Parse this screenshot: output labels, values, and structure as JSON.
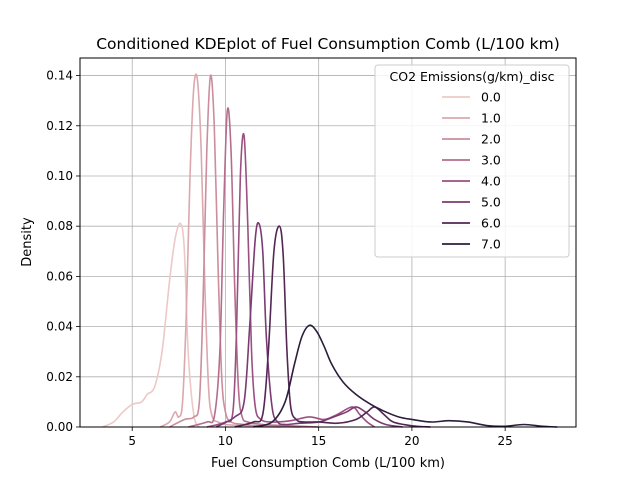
{
  "chart_data": {
    "type": "line",
    "title": "Conditioned KDEplot of Fuel Consumption Comb (L/100 km)",
    "xlabel": "Fuel Consumption Comb (L/100 km)",
    "ylabel": "Density",
    "xlim": [
      2.2,
      28.8
    ],
    "ylim": [
      0,
      0.147
    ],
    "xticks": [
      5,
      10,
      15,
      20,
      25
    ],
    "xtick_labels": [
      "5",
      "10",
      "15",
      "20",
      "25"
    ],
    "yticks": [
      0,
      0.02,
      0.04,
      0.06,
      0.08,
      0.1,
      0.12,
      0.14
    ],
    "ytick_labels": [
      "0.00",
      "0.02",
      "0.04",
      "0.06",
      "0.08",
      "0.10",
      "0.12",
      "0.14"
    ],
    "grid": true,
    "legend": {
      "title": "CO2 Emissions(g/km)_disc",
      "placement": "top-right",
      "entries": [
        "0.0",
        "1.0",
        "2.0",
        "3.0",
        "4.0",
        "5.0",
        "6.0",
        "7.0"
      ]
    },
    "series": [
      {
        "name": "0.0",
        "color": "#ecc9c6",
        "x": [
          3.4,
          4.0,
          4.5,
          5.0,
          5.5,
          5.8,
          6.2,
          6.6,
          7.0,
          7.3,
          7.6,
          7.8,
          8.0,
          8.3,
          8.6
        ],
        "y": [
          0.0,
          0.002,
          0.006,
          0.009,
          0.01,
          0.013,
          0.016,
          0.03,
          0.058,
          0.075,
          0.081,
          0.07,
          0.03,
          0.005,
          0.0
        ]
      },
      {
        "name": "1.0",
        "color": "#dba8ad",
        "x": [
          6.5,
          7.0,
          7.3,
          7.5,
          7.7,
          7.9,
          8.1,
          8.3,
          8.5,
          8.7,
          8.9,
          9.1,
          9.3,
          9.6,
          10.0,
          11.0,
          12.0,
          13.0
        ],
        "y": [
          0.0,
          0.002,
          0.006,
          0.004,
          0.01,
          0.045,
          0.1,
          0.135,
          0.138,
          0.11,
          0.055,
          0.015,
          0.004,
          0.002,
          0.001,
          0.0006,
          0.0002,
          0.0
        ]
      },
      {
        "name": "2.0",
        "color": "#cc8d9c",
        "x": [
          7.0,
          7.8,
          8.3,
          8.6,
          8.8,
          9.0,
          9.2,
          9.4,
          9.6,
          9.8,
          10.0,
          10.3,
          11.0,
          12.0,
          13.0,
          14.0
        ],
        "y": [
          0.0,
          0.003,
          0.004,
          0.01,
          0.05,
          0.11,
          0.14,
          0.12,
          0.065,
          0.02,
          0.006,
          0.002,
          0.001,
          0.0004,
          0.0002,
          0.0
        ]
      },
      {
        "name": "3.0",
        "color": "#b56d8e",
        "x": [
          8.0,
          9.0,
          9.4,
          9.7,
          9.9,
          10.1,
          10.3,
          10.5,
          10.7,
          10.9,
          11.2,
          12.0,
          13.0,
          14.0,
          15.0
        ],
        "y": [
          0.0,
          0.002,
          0.004,
          0.03,
          0.085,
          0.126,
          0.11,
          0.055,
          0.015,
          0.004,
          0.002,
          0.001,
          0.0006,
          0.0003,
          0.0
        ]
      },
      {
        "name": "4.0",
        "color": "#9a5182",
        "x": [
          9.0,
          10.0,
          10.4,
          10.6,
          10.8,
          11.0,
          11.2,
          11.4,
          11.6,
          11.9,
          12.5,
          13.5,
          14.5,
          15.3,
          16.0,
          16.8,
          17.2,
          17.6,
          18.0
        ],
        "y": [
          0.0,
          0.002,
          0.006,
          0.04,
          0.1,
          0.116,
          0.08,
          0.03,
          0.008,
          0.003,
          0.002,
          0.0025,
          0.004,
          0.003,
          0.005,
          0.008,
          0.005,
          0.002,
          0.0
        ]
      },
      {
        "name": "5.0",
        "color": "#7a3b72",
        "x": [
          9.5,
          10.5,
          11.0,
          11.3,
          11.6,
          11.8,
          12.0,
          12.2,
          12.5,
          12.8,
          13.2,
          14.0,
          15.0,
          15.8,
          16.5,
          17.0,
          17.5,
          18.0,
          18.6,
          19.5
        ],
        "y": [
          0.0,
          0.004,
          0.01,
          0.04,
          0.075,
          0.081,
          0.07,
          0.035,
          0.008,
          0.002,
          0.001,
          0.0015,
          0.002,
          0.004,
          0.006,
          0.008,
          0.006,
          0.003,
          0.001,
          0.0
        ]
      },
      {
        "name": "6.0",
        "color": "#532654",
        "x": [
          10.5,
          11.5,
          12.0,
          12.3,
          12.6,
          12.9,
          13.1,
          13.3,
          13.5,
          13.8,
          14.2,
          15.0,
          16.0,
          17.0,
          17.6,
          18.0,
          18.5,
          19.0,
          20.0,
          21.0
        ],
        "y": [
          0.0,
          0.002,
          0.005,
          0.03,
          0.07,
          0.08,
          0.068,
          0.03,
          0.008,
          0.003,
          0.002,
          0.002,
          0.0015,
          0.003,
          0.006,
          0.008,
          0.005,
          0.002,
          0.0005,
          0.0
        ]
      },
      {
        "name": "7.0",
        "color": "#2d1e3e",
        "x": [
          11.5,
          12.5,
          13.2,
          13.7,
          14.1,
          14.5,
          14.9,
          15.3,
          15.7,
          16.3,
          17.0,
          17.8,
          18.6,
          19.3,
          20.0,
          21.0,
          22.0,
          23.0,
          24.0,
          25.0,
          26.0,
          27.0,
          27.8
        ],
        "y": [
          0.0,
          0.002,
          0.01,
          0.025,
          0.036,
          0.0405,
          0.038,
          0.032,
          0.025,
          0.018,
          0.013,
          0.009,
          0.006,
          0.004,
          0.003,
          0.002,
          0.0025,
          0.002,
          0.0006,
          0.0003,
          0.001,
          0.0003,
          0.0
        ]
      }
    ]
  }
}
